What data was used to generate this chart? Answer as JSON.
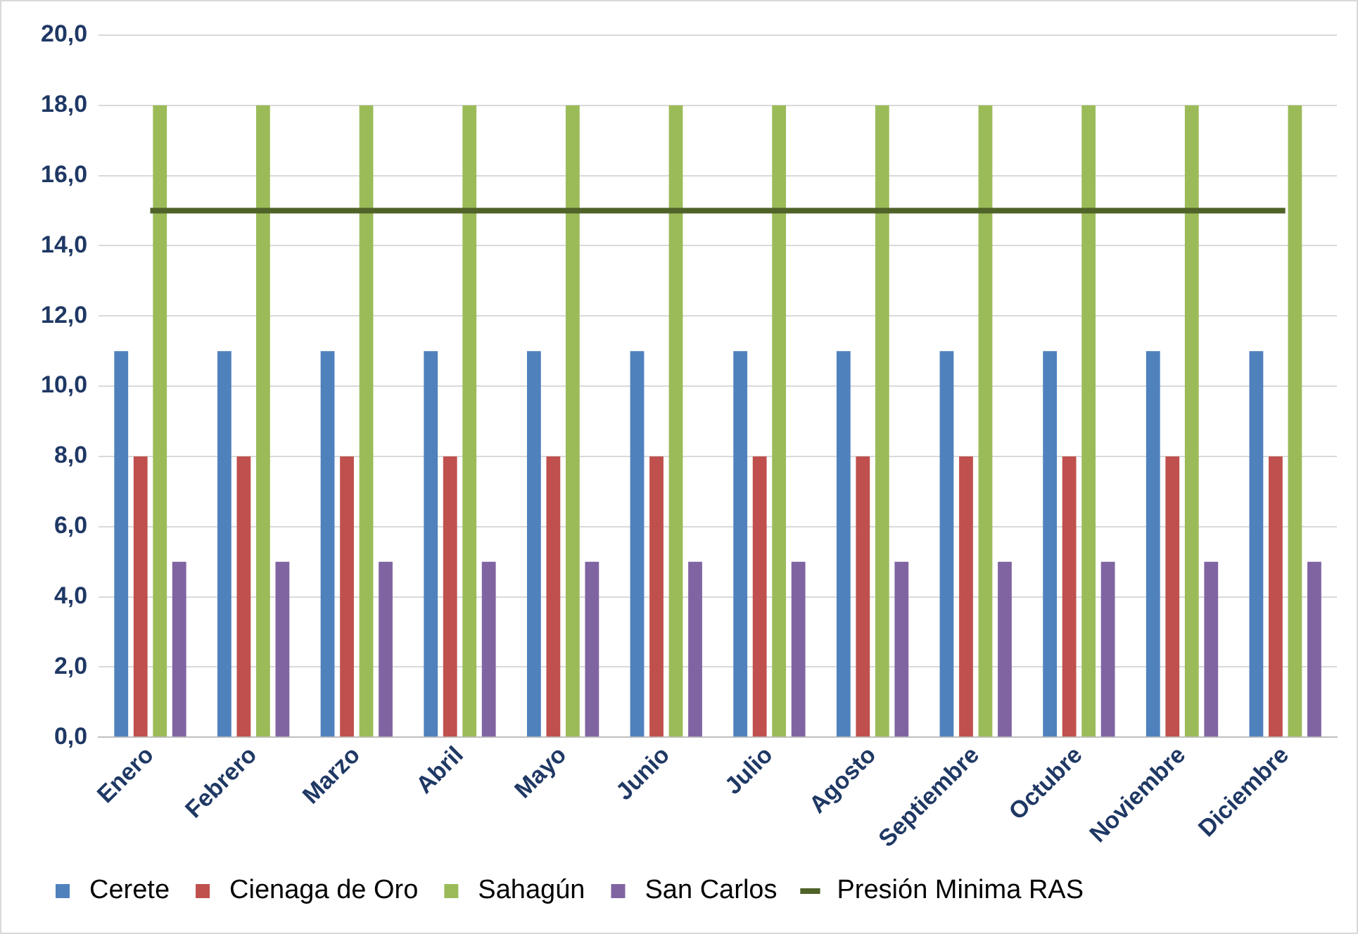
{
  "chart_data": {
    "type": "bar",
    "categories": [
      "Enero",
      "Febrero",
      "Marzo",
      "Abril",
      "Mayo",
      "Junio",
      "Julio",
      "Agosto",
      "Septiembre",
      "Octubre",
      "Noviembre",
      "Diciembre"
    ],
    "series": [
      {
        "name": "Cerete",
        "color": "#4f81bd",
        "values": [
          11,
          11,
          11,
          11,
          11,
          11,
          11,
          11,
          11,
          11,
          11,
          11
        ]
      },
      {
        "name": "Cienaga de Oro",
        "color": "#c0504d",
        "values": [
          8,
          8,
          8,
          8,
          8,
          8,
          8,
          8,
          8,
          8,
          8,
          8
        ]
      },
      {
        "name": "Sahagún",
        "color": "#9bbb59",
        "values": [
          18,
          18,
          18,
          18,
          18,
          18,
          18,
          18,
          18,
          18,
          18,
          18
        ]
      },
      {
        "name": "San Carlos",
        "color": "#8064a2",
        "values": [
          5,
          5,
          5,
          5,
          5,
          5,
          5,
          5,
          5,
          5,
          5,
          5
        ]
      },
      {
        "name": "Presión Minima RAS",
        "type": "line",
        "color": "#4f6228",
        "values": [
          15,
          15,
          15,
          15,
          15,
          15,
          15,
          15,
          15,
          15,
          15,
          15
        ]
      }
    ],
    "ylim": [
      0,
      20
    ],
    "yticks": [
      {
        "value": 0,
        "label": "0,0"
      },
      {
        "value": 2,
        "label": "2,0"
      },
      {
        "value": 4,
        "label": "4,0"
      },
      {
        "value": 6,
        "label": "6,0"
      },
      {
        "value": 8,
        "label": "8,0"
      },
      {
        "value": 10,
        "label": "10,0"
      },
      {
        "value": 12,
        "label": "12,0"
      },
      {
        "value": 14,
        "label": "14,0"
      },
      {
        "value": 16,
        "label": "16,0"
      },
      {
        "value": 18,
        "label": "18,0"
      },
      {
        "value": 20,
        "label": "20,0"
      }
    ],
    "grid": "y",
    "legend": "bottom",
    "marker": "none"
  }
}
